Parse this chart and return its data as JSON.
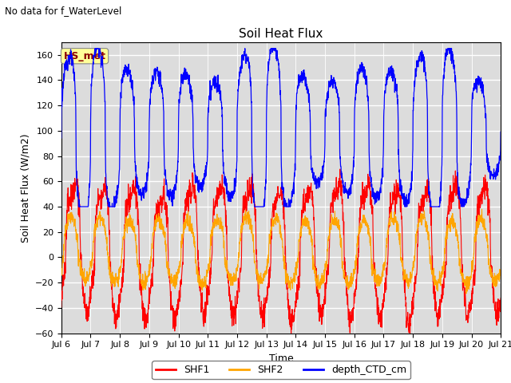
{
  "title": "Soil Heat Flux",
  "suptitle_left": "No data for f_WaterLevel",
  "xlabel": "Time",
  "ylabel": "Soil Heat Flux (W/m2)",
  "ylim": [
    -60,
    170
  ],
  "yticks": [
    -60,
    -40,
    -20,
    0,
    20,
    40,
    60,
    80,
    100,
    120,
    140,
    160
  ],
  "xtick_labels": [
    "Jul 6",
    "Jul 7",
    "Jul 8",
    "Jul 9",
    "Jul 10",
    "Jul 11",
    "Jul 12",
    "Jul 13",
    "Jul 14",
    "Jul 15",
    "Jul 16",
    "Jul 17",
    "Jul 18",
    "Jul 19",
    "Jul 20",
    "Jul 21"
  ],
  "shf1_color": "#ff0000",
  "shf2_color": "#ffa500",
  "depth_color": "#0000ff",
  "annotation_text": "HS_met",
  "annotation_color": "#8b0000",
  "annotation_bg": "#ffff99",
  "bg_color": "#dcdcdc",
  "legend_items": [
    "SHF1",
    "SHF2",
    "depth_CTD_cm"
  ],
  "legend_colors": [
    "#ff0000",
    "#ffa500",
    "#0000ff"
  ]
}
